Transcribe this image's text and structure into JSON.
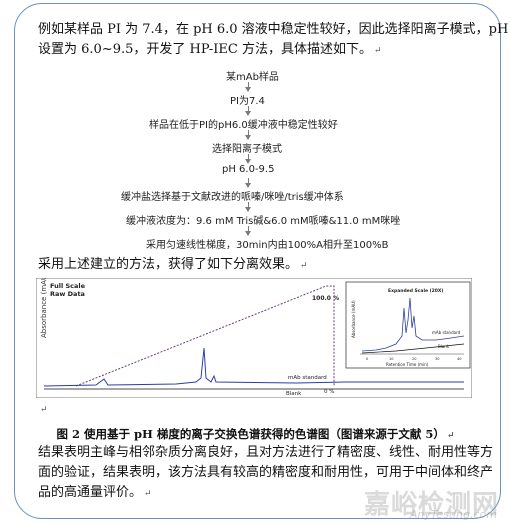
{
  "paragraphs": {
    "intro_line1": "例如某样品 PI 为 7.4，在 pH 6.0 溶液中稳定性较好，因此选择阳离子模式，pH",
    "intro_line2": "设置为 6.0~9.5，开发了 HP-IEC 方法，具体描述如下。",
    "result_intro": "采用上述建立的方法，获得了如下分离效果。",
    "conclusion_line1": "结果表明主峰与相邻杂质分离良好，且对方法进行了精密度、线性、耐用性等方",
    "conclusion_line2": "面的验证，结果表明，该方法具有较高的精密度和耐用性，可用于中间体和终产",
    "conclusion_line3": "品的高通量评价。"
  },
  "paragraph_mark": "↵",
  "flowchart": {
    "steps": [
      "某mAb样品",
      "PI为7.4",
      "样品在低于PI的pH6.0缓冲液中稳定性较好",
      "选择阳离子模式",
      "pH 6.0-9.5",
      "缓冲盐选择基于文献改进的哌嗪/咪唑/tris缓冲体系",
      "缓冲液浓度为：9.6 mM Tris碱&6.0 mM哌嗪&11.0 mM咪唑",
      "采用匀速线性梯度，30min内由100%A相升至100%B"
    ]
  },
  "figure": {
    "caption": "图 2  使用基于 pH 梯度的离子交换色谱获得的色谱图（图谱来源于文献 5）"
  },
  "chart_data": {
    "type": "line",
    "ylabel": "Absorbance (mAU)",
    "corner_text": [
      "Full Scale",
      "Raw Data"
    ],
    "annotations": [
      "100.0 %",
      "0 %",
      "mAb standard",
      "Blank"
    ],
    "inset": {
      "title": "Expanded Scale (20X)",
      "xlabel": "Retention Time (min)",
      "ylabel": "Absorbance (mAU)",
      "x_ticks": [
        "0",
        "10",
        "20",
        "30",
        "40"
      ],
      "labels": [
        "mAb standard",
        "Blank"
      ]
    }
  },
  "watermark": {
    "cn": "嘉峪检测网",
    "en": "AnyTesting.com"
  }
}
